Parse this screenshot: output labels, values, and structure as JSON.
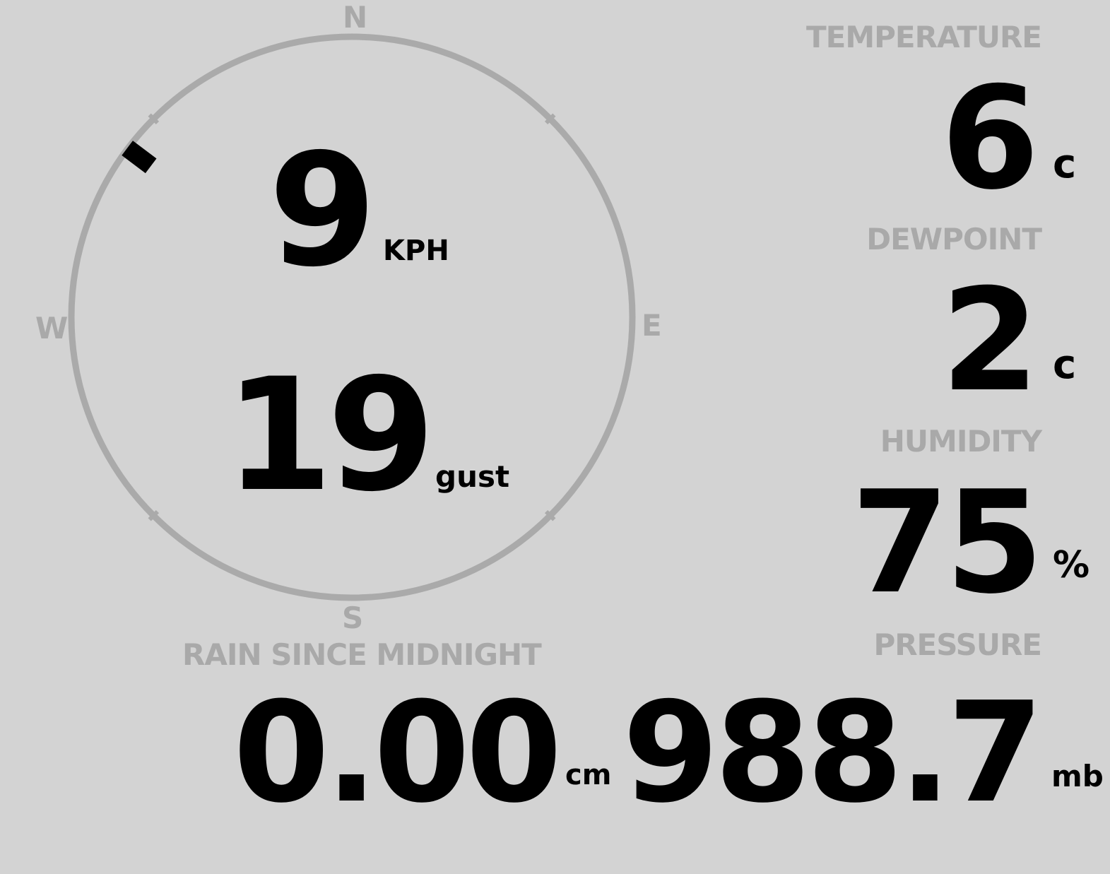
{
  "compass": {
    "labels": {
      "n": "N",
      "e": "E",
      "s": "S",
      "w": "W"
    },
    "wind_direction_deg": 307,
    "ring_color": "#aaaaaa",
    "marker_color": "#000000"
  },
  "wind": {
    "speed": "9",
    "speed_unit": "KPH",
    "gust": "19",
    "gust_unit": "gust"
  },
  "temperature": {
    "label": "TEMPERATURE",
    "value": "6",
    "unit": "c"
  },
  "dewpoint": {
    "label": "DEWPOINT",
    "value": "2",
    "unit": "c"
  },
  "humidity": {
    "label": "HUMIDITY",
    "value": "75",
    "unit": "%"
  },
  "rain": {
    "label": "RAIN SINCE MIDNIGHT",
    "value": "0.00",
    "unit": "cm"
  },
  "pressure": {
    "label": "PRESSURE",
    "value": "988.7",
    "unit": "mb"
  },
  "colors": {
    "background": "#d3d3d3",
    "label": "#a9a9a9",
    "value": "#000000"
  }
}
